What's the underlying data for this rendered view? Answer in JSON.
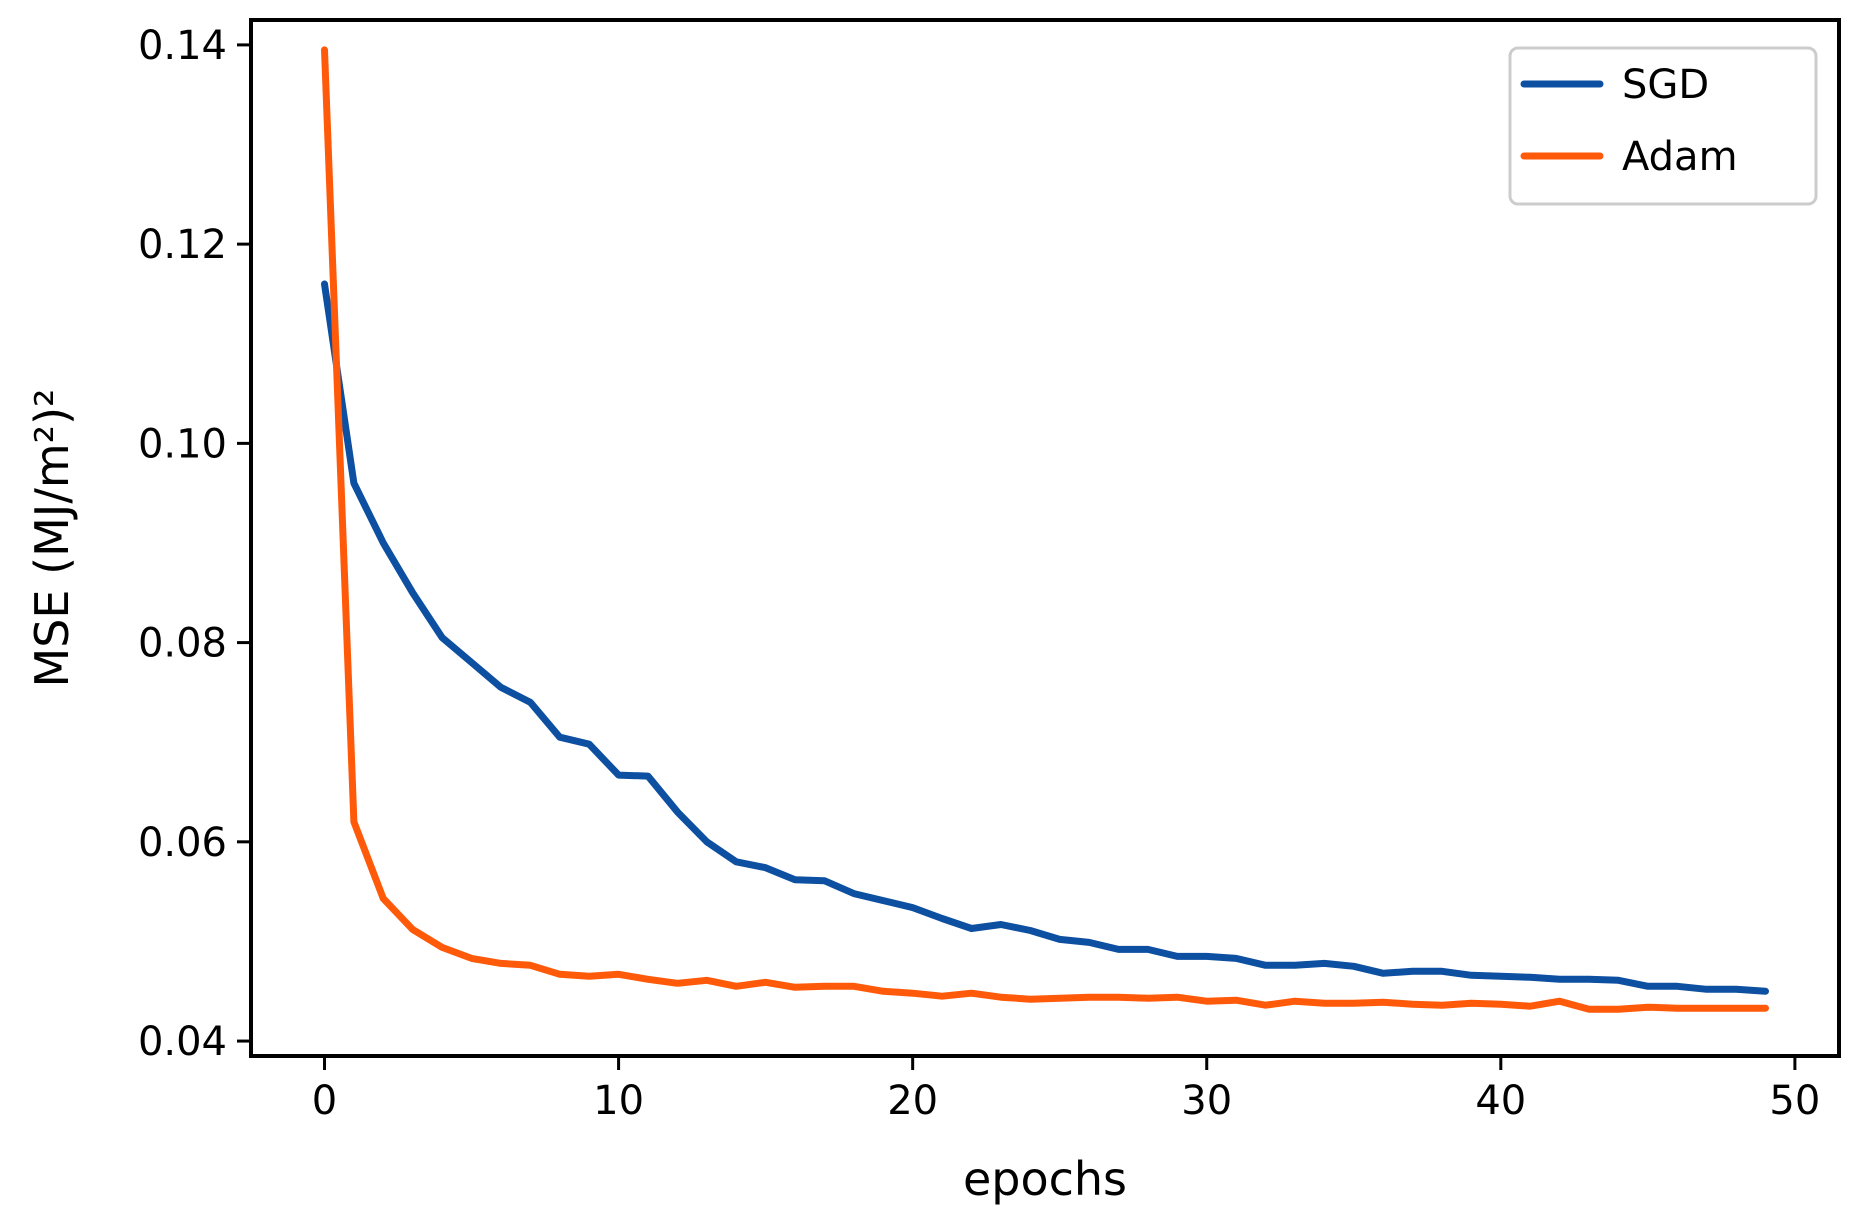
{
  "chart_data": {
    "type": "line",
    "xlabel": "epochs",
    "ylabel": "MSE (MJ/m²)²",
    "xlim": [
      -2.5,
      51.5
    ],
    "ylim": [
      0.0385,
      0.1425
    ],
    "xticks": [
      0,
      10,
      20,
      30,
      40,
      50
    ],
    "yticks": [
      0.04,
      0.06,
      0.08,
      0.1,
      0.12,
      0.14
    ],
    "xtick_labels": [
      "0",
      "10",
      "20",
      "30",
      "40",
      "50"
    ],
    "ytick_labels": [
      "0.04",
      "0.06",
      "0.08",
      "0.10",
      "0.12",
      "0.14"
    ],
    "grid": false,
    "legend_position": "top-right",
    "series": [
      {
        "name": "SGD",
        "color": "#0d4fa0",
        "x": [
          0,
          1,
          2,
          3,
          4,
          5,
          6,
          7,
          8,
          9,
          10,
          11,
          12,
          13,
          14,
          15,
          16,
          17,
          18,
          19,
          20,
          21,
          22,
          23,
          24,
          25,
          26,
          27,
          28,
          29,
          30,
          31,
          32,
          33,
          34,
          35,
          36,
          37,
          38,
          39,
          40,
          41,
          42,
          43,
          44,
          45,
          46,
          47,
          48,
          49
        ],
        "values": [
          0.116,
          0.096,
          0.09,
          0.085,
          0.0805,
          0.078,
          0.0755,
          0.074,
          0.0705,
          0.0698,
          0.0667,
          0.0666,
          0.063,
          0.06,
          0.058,
          0.0574,
          0.0562,
          0.0561,
          0.0548,
          0.0541,
          0.0534,
          0.0523,
          0.0513,
          0.0517,
          0.0511,
          0.0502,
          0.0499,
          0.0492,
          0.0492,
          0.0485,
          0.0485,
          0.0483,
          0.0476,
          0.0476,
          0.0478,
          0.0475,
          0.0468,
          0.047,
          0.047,
          0.0466,
          0.0465,
          0.0464,
          0.0462,
          0.0462,
          0.0461,
          0.0455,
          0.0455,
          0.0452,
          0.0452,
          0.045
        ]
      },
      {
        "name": "Adam",
        "color": "#ff5a0a",
        "x": [
          0,
          1,
          2,
          3,
          4,
          5,
          6,
          7,
          8,
          9,
          10,
          11,
          12,
          13,
          14,
          15,
          16,
          17,
          18,
          19,
          20,
          21,
          22,
          23,
          24,
          25,
          26,
          27,
          28,
          29,
          30,
          31,
          32,
          33,
          34,
          35,
          36,
          37,
          38,
          39,
          40,
          41,
          42,
          43,
          44,
          45,
          46,
          47,
          48,
          49
        ],
        "values": [
          0.1395,
          0.062,
          0.0543,
          0.0512,
          0.0494,
          0.0483,
          0.0478,
          0.0476,
          0.0467,
          0.0465,
          0.0467,
          0.0462,
          0.0458,
          0.0461,
          0.0455,
          0.0459,
          0.0454,
          0.0455,
          0.0455,
          0.045,
          0.0448,
          0.0445,
          0.0448,
          0.0444,
          0.0442,
          0.0443,
          0.0444,
          0.0444,
          0.0443,
          0.0444,
          0.044,
          0.0441,
          0.0436,
          0.044,
          0.0438,
          0.0438,
          0.0439,
          0.0437,
          0.0436,
          0.0438,
          0.0437,
          0.0435,
          0.044,
          0.0432,
          0.0432,
          0.0434,
          0.0433,
          0.0433,
          0.0433,
          0.0433
        ]
      }
    ]
  }
}
